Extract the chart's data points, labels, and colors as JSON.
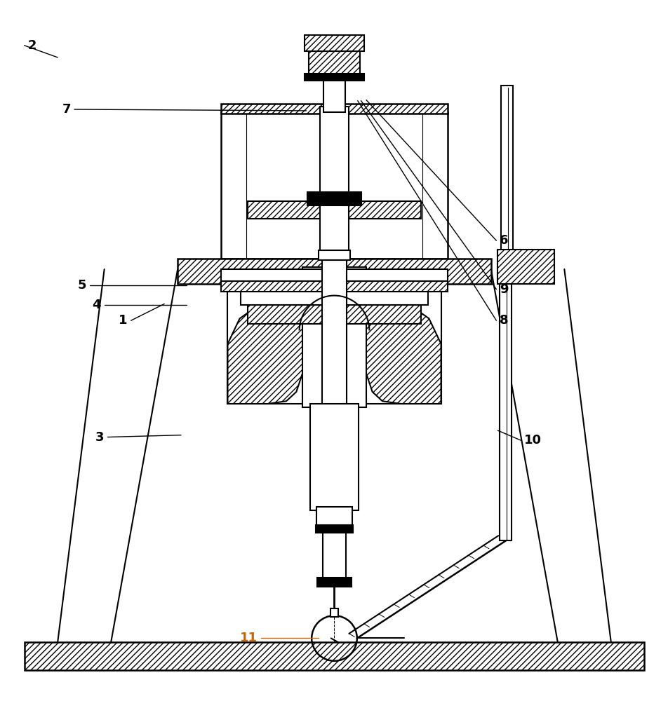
{
  "bg_color": "#ffffff",
  "lc": "#000000",
  "orange": "#cc6600",
  "lw_main": 1.5,
  "lw_thin": 0.8,
  "label_fs": 13,
  "figsize": [
    9.53,
    10.0
  ],
  "dpi": 100,
  "labels": {
    "1": [
      0.19,
      0.545,
      0.245,
      0.57
    ],
    "2": [
      0.04,
      0.958,
      0.085,
      0.94
    ],
    "3": [
      0.155,
      0.37,
      0.27,
      0.373
    ],
    "4": [
      0.15,
      0.568,
      0.278,
      0.568
    ],
    "5": [
      0.128,
      0.598,
      0.278,
      0.598
    ],
    "6": [
      0.748,
      0.665,
      0.548,
      0.876
    ],
    "7": [
      0.105,
      0.862,
      0.458,
      0.86
    ],
    "8": [
      0.748,
      0.545,
      0.535,
      0.875
    ],
    "9": [
      0.748,
      0.592,
      0.54,
      0.875
    ],
    "10": [
      0.785,
      0.365,
      0.745,
      0.38
    ],
    "11": [
      0.385,
      0.068,
      0.476,
      0.068
    ]
  }
}
